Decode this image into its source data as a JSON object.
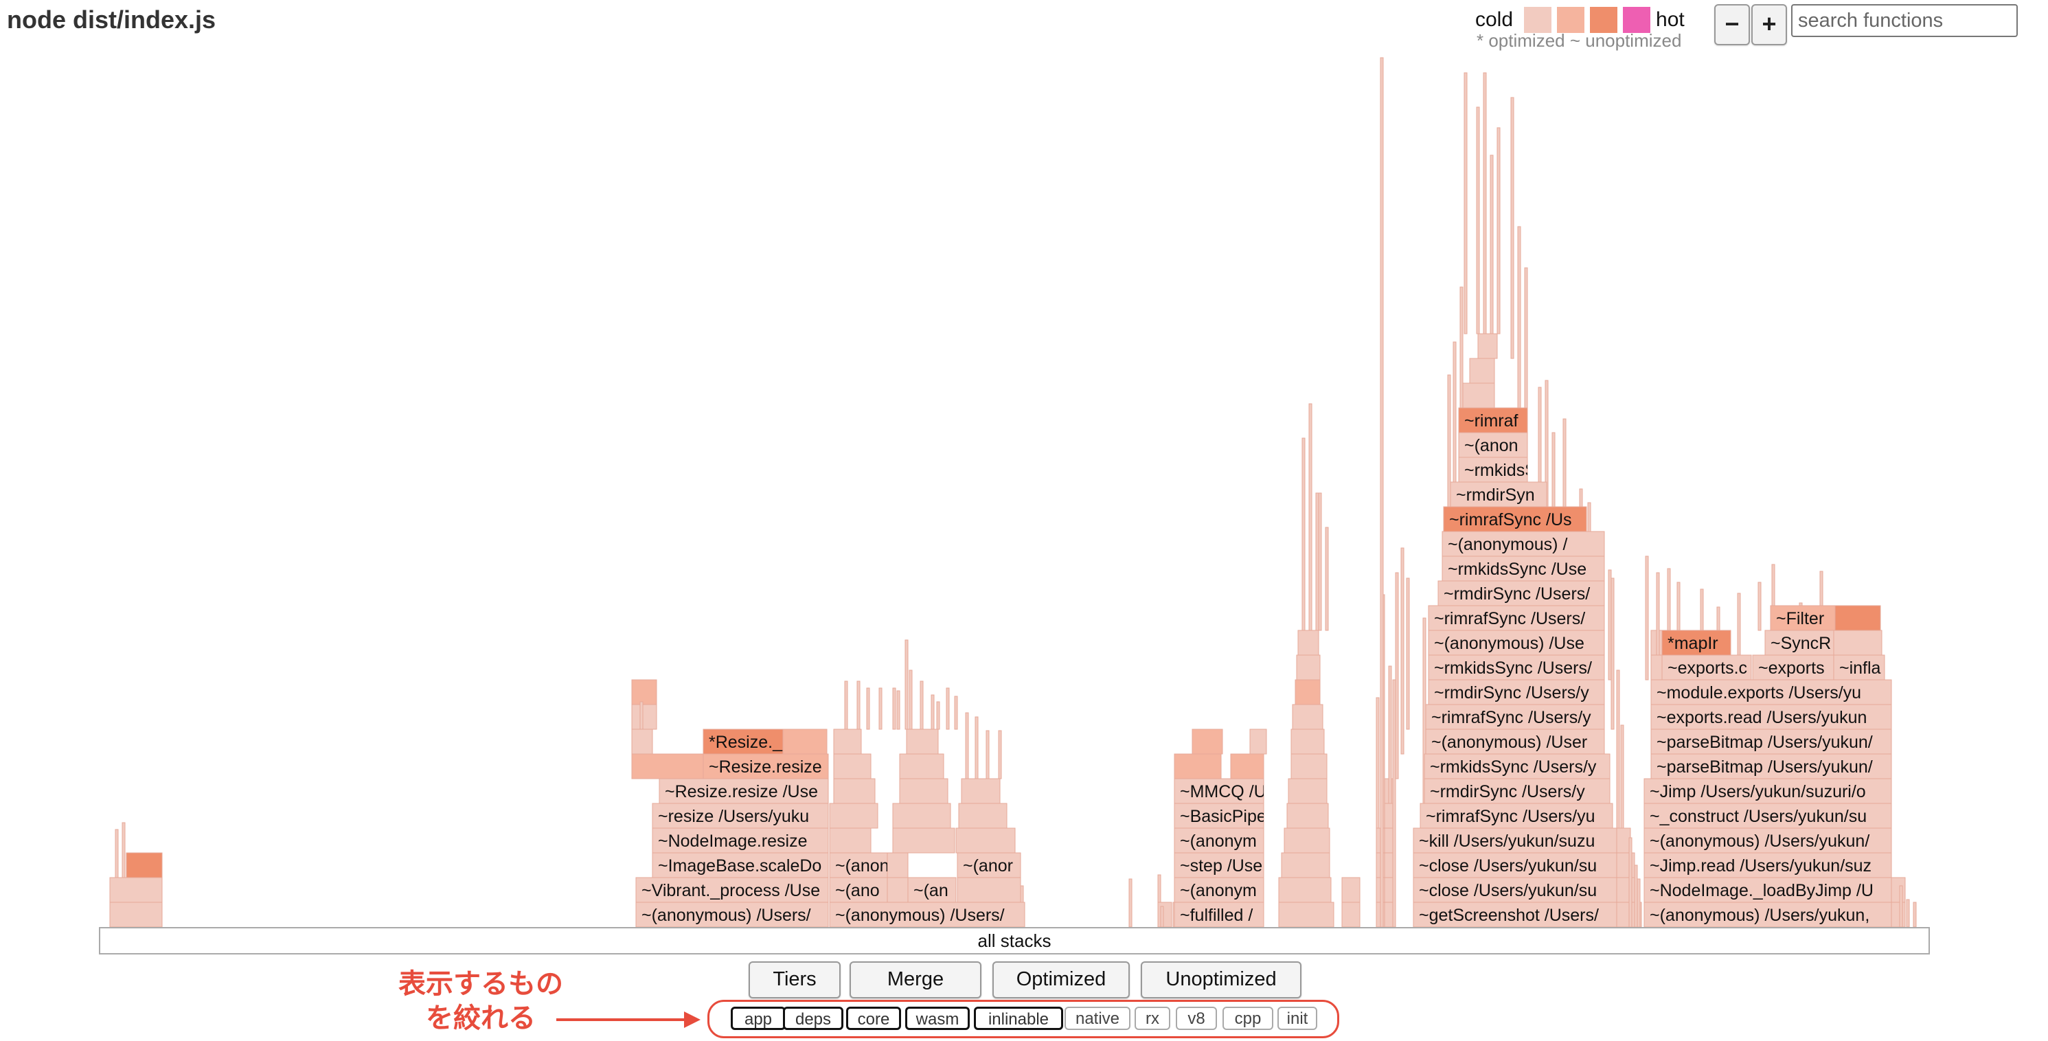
{
  "title": "node dist/index.js",
  "legend": {
    "cold_label": "cold",
    "hot_label": "hot",
    "swatch_colors": [
      "#f2cbc0",
      "#f5b49e",
      "#ef8e6b",
      "#ee5fb2"
    ],
    "note": "* optimized ~ unoptimized"
  },
  "zoom": {
    "minus": "−",
    "plus": "+"
  },
  "search": {
    "placeholder": "search functions"
  },
  "base_label": "all stacks",
  "buttons": [
    "Tiers",
    "Merge",
    "Optimized",
    "Unoptimized"
  ],
  "filters": [
    {
      "label": "app",
      "on": true
    },
    {
      "label": "deps",
      "on": true
    },
    {
      "label": "core",
      "on": true
    },
    {
      "label": "wasm",
      "on": true
    },
    {
      "label": "inlinable",
      "on": true
    },
    {
      "label": "native",
      "on": false
    },
    {
      "label": "rx",
      "on": false
    },
    {
      "label": "v8",
      "on": false
    },
    {
      "label": "cpp",
      "on": false
    },
    {
      "label": "init",
      "on": false
    }
  ],
  "annotation": {
    "line1": "表示するもの",
    "line2": "を絞れる"
  },
  "colors": {
    "cold": "#f2cbc0",
    "warm": "#f5b49e",
    "hot": "#ef8e6b",
    "frame_border": "#e6a898",
    "accent": "#e74c3c"
  },
  "frames": [
    "~(anonymous) /Users/",
    "~Vibrant._process /Use",
    "~ImageBase.scaleDo",
    "~NodeImage.resize",
    "~resize /Users/yuku",
    "~Resize.resize /Use",
    "~Resize.resize",
    "*Resize._",
    "~(anonymous) /Users/",
    "~(ano",
    "~(an",
    "~(anon",
    "~(anor",
    "~fulfilled /",
    "~(anonym",
    "~step /Use",
    "~(anonym",
    "~BasicPipe",
    "~MMCQ /U",
    "~getScreenshot /Users/",
    "~close /Users/yukun/su",
    "~close /Users/yukun/su",
    "~kill /Users/yukun/suzu",
    "~rimrafSync /Users/yu",
    "~rmdirSync /Users/y",
    "~rmkidsSync /Users/y",
    "~(anonymous) /User",
    "~rimrafSync /Users/y",
    "~rmdirSync /Users/y",
    "~rmkidsSync /Users/",
    "~(anonymous) /Use",
    "~rimrafSync /Users/",
    "~rmdirSync /Users/",
    "~rmkidsSync /Use",
    "~(anonymous) /",
    "~rimrafSync /Us",
    "~rmdirSyn",
    "~rmkidsS",
    "~(anon",
    "~rimraf",
    "~(anonymous) /Users/yukun,",
    "~NodeImage._loadByJimp /U",
    "~Jimp.read /Users/yukun/suz",
    "~(anonymous) /Users/yukun/",
    "~_construct /Users/yukun/su",
    "~Jimp /Users/yukun/suzuri/o",
    "~parseBitmap /Users/yukun/",
    "~parseBitmap /Users/yukun/",
    "~exports.read /Users/yukun",
    "~module.exports /Users/yu",
    "~exports.c",
    "*mapIr",
    "~exports",
    "~infla",
    "~SyncR",
    "~Filter"
  ]
}
